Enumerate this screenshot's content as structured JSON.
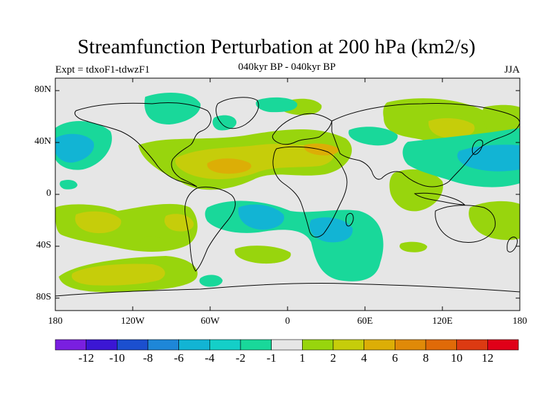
{
  "title": "Streamfunction Perturbation at 200 hPa (km2/s)",
  "subtitle": "040kyr BP - 040kyr BP",
  "experiment_label": "Expt = tdxoF1-tdwzF1",
  "season_label": "JJA",
  "latitude_labels": [
    "80N",
    "40N",
    "0",
    "40S",
    "80S"
  ],
  "longitude_labels": [
    "180",
    "120W",
    "60W",
    "0",
    "60E",
    "120E",
    "180"
  ],
  "colorbar": {
    "colors": [
      "#7a1fe0",
      "#3b16d4",
      "#1b4fcf",
      "#1e87d8",
      "#12b4d4",
      "#14cfc8",
      "#19d89a",
      "#e6e6e6",
      "#98d50d",
      "#c6cd0a",
      "#dcae06",
      "#e08a08",
      "#e06a08",
      "#dc3a12",
      "#e00018"
    ],
    "labels": [
      "-12",
      "-10",
      "-8",
      "-6",
      "-4",
      "-2",
      "-1",
      "1",
      "2",
      "4",
      "6",
      "8",
      "10",
      "12"
    ]
  }
}
